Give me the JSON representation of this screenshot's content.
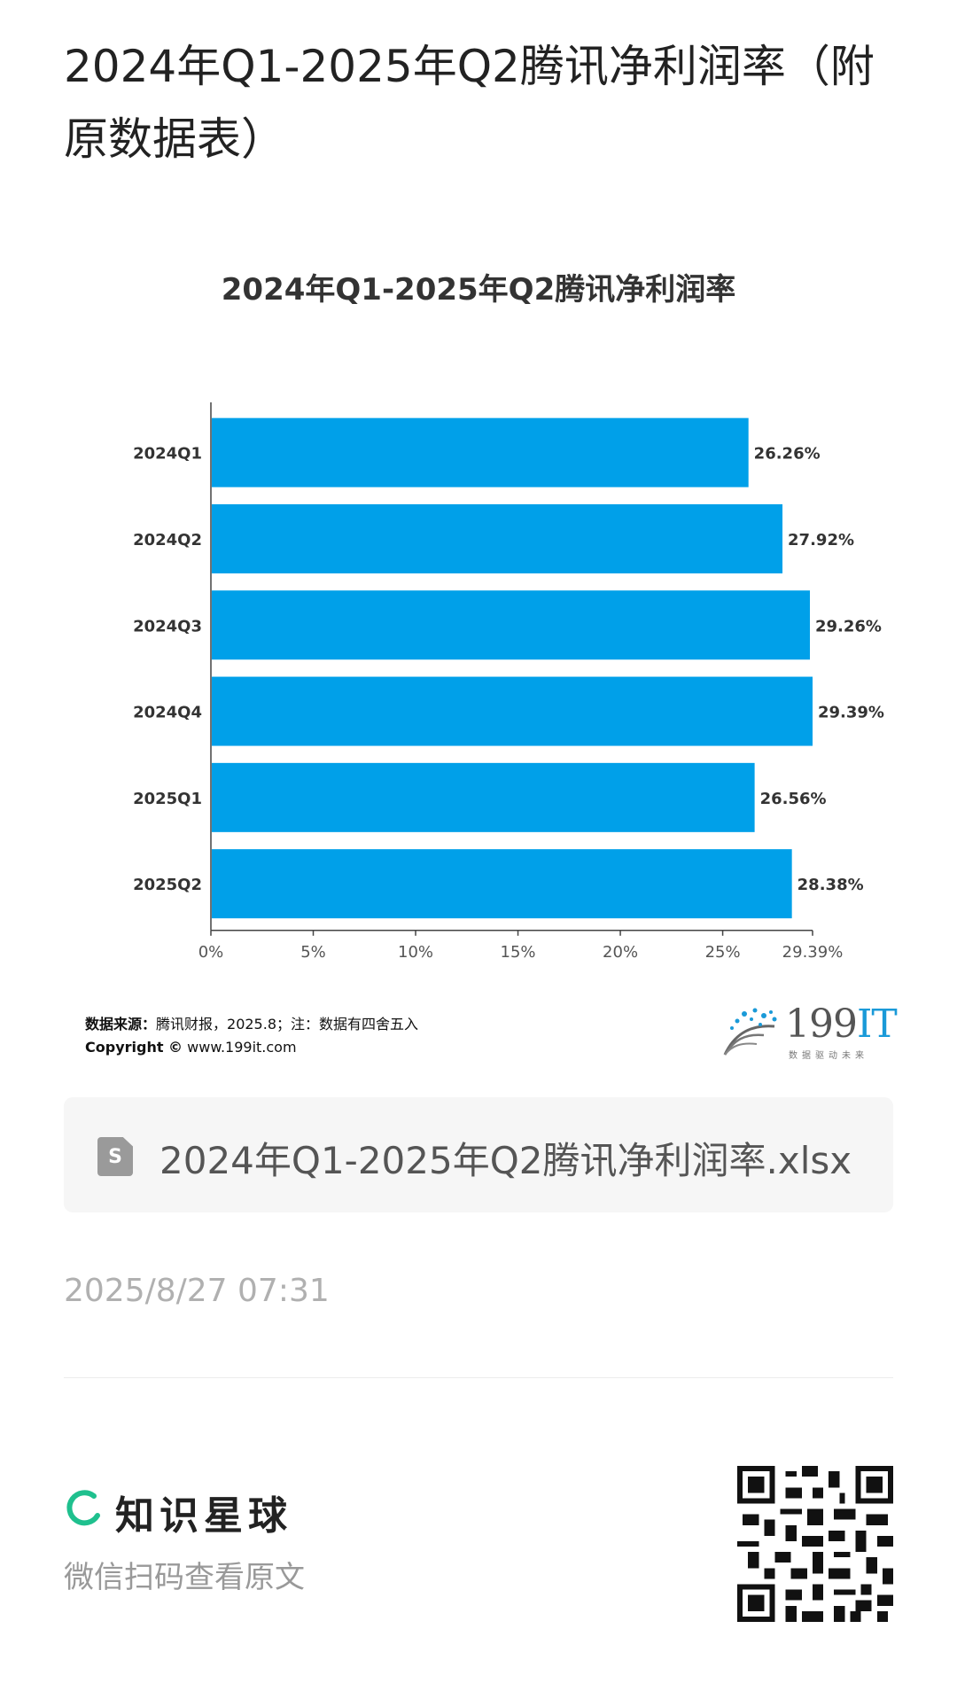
{
  "page": {
    "title": "2024年Q1-2025年Q2腾讯净利润率（附原数据表）"
  },
  "chart_data": {
    "type": "bar",
    "orientation": "horizontal",
    "title": "2024年Q1-2025年Q2腾讯净利润率",
    "categories": [
      "2024Q1",
      "2024Q2",
      "2024Q3",
      "2024Q4",
      "2025Q1",
      "2025Q2"
    ],
    "values": [
      26.26,
      27.92,
      29.26,
      29.39,
      26.56,
      28.38
    ],
    "value_labels": [
      "26.26%",
      "27.92%",
      "29.26%",
      "29.39%",
      "26.56%",
      "28.38%"
    ],
    "xlim": [
      0,
      29.39
    ],
    "x_ticks": [
      0,
      5,
      10,
      15,
      20,
      25,
      29.39
    ],
    "x_tick_labels": [
      "0%",
      "5%",
      "10%",
      "15%",
      "20%",
      "25%",
      "29.39%"
    ],
    "bar_color": "#00a0e9",
    "grid": false,
    "legend": "none"
  },
  "source": {
    "label": "数据来源：",
    "text": "腾讯财报，2025.8；注：数据有四舍五入",
    "copyright_label": "Copyright ©",
    "copyright_url": "www.199it.com"
  },
  "brand": {
    "name_digits": "199",
    "name_it": "IT",
    "tagline": "数据驱动未来"
  },
  "attachment": {
    "file_name": "2024年Q1-2025年Q2腾讯净利润率.xlsx",
    "icon": "spreadsheet-file-icon",
    "icon_glyph": "S"
  },
  "post": {
    "timestamp": "2025/8/27 07:31"
  },
  "footer": {
    "app_name": "知识星球",
    "hint": "微信扫码查看原文",
    "qr_icon": "qr-code-icon"
  }
}
